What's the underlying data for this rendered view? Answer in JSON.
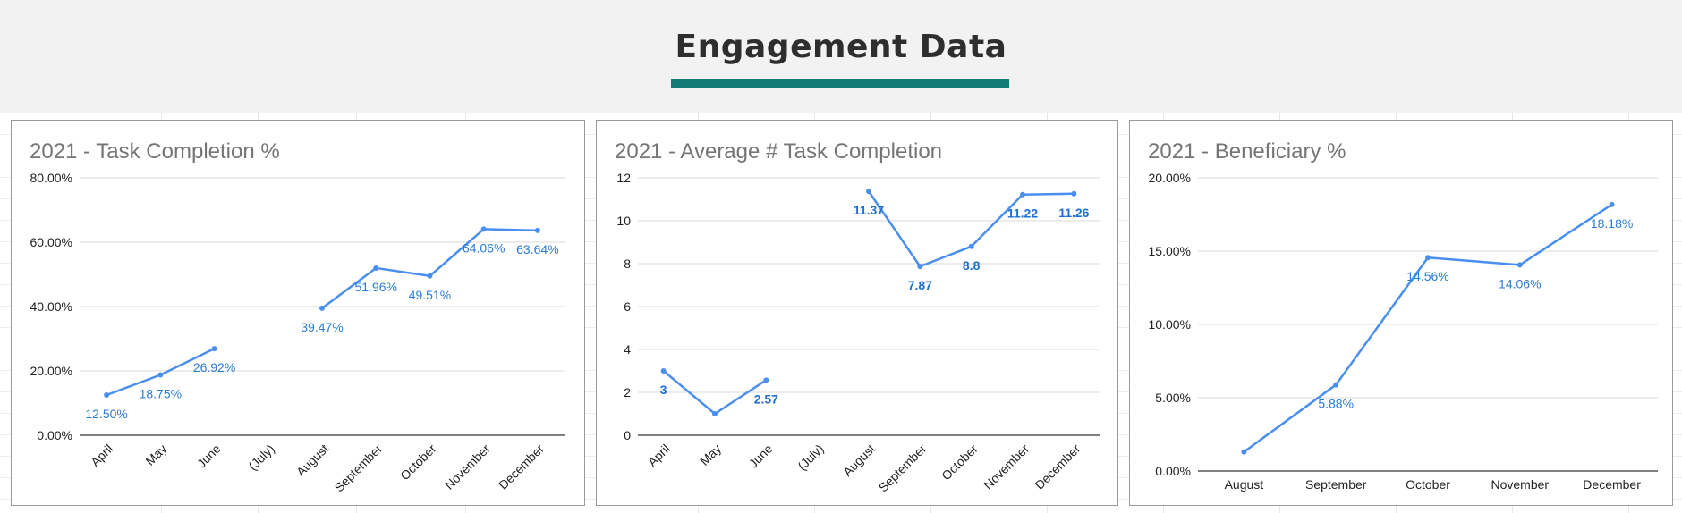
{
  "page": {
    "title": "Engagement Data",
    "accent_color": "#127a74"
  },
  "series_color": "#4a8ff0",
  "chart_data": [
    {
      "type": "line",
      "title": "2021 - Task Completion %",
      "categories": [
        "April",
        "May",
        "June",
        "(July)",
        "August",
        "September",
        "October",
        "November",
        "December"
      ],
      "values": [
        12.5,
        18.75,
        26.92,
        null,
        39.47,
        51.96,
        49.51,
        64.06,
        63.64
      ],
      "data_labels": [
        "12.50%",
        "18.75%",
        "26.92%",
        "",
        "39.47%",
        "51.96%",
        "49.51%",
        "64.06%",
        "63.64%"
      ],
      "y_ticks": [
        0,
        20,
        40,
        60,
        80
      ],
      "y_tick_labels": [
        "0.00%",
        "20.00%",
        "40.00%",
        "60.00%",
        "80.00%"
      ],
      "ylim": [
        0,
        80
      ],
      "rotate_x_labels": true,
      "bold_labels": false,
      "grid": true
    },
    {
      "type": "line",
      "title": "2021 - Average # Task Completion",
      "categories": [
        "April",
        "May",
        "June",
        "(July)",
        "August",
        "September",
        "October",
        "November",
        "December"
      ],
      "values": [
        3,
        1,
        2.57,
        null,
        11.37,
        7.87,
        8.8,
        11.22,
        11.26
      ],
      "data_labels": [
        "3",
        "",
        "2.57",
        "",
        "11.37",
        "7.87",
        "8.8",
        "11.22",
        "11.26"
      ],
      "y_ticks": [
        0,
        2,
        4,
        6,
        8,
        10,
        12
      ],
      "y_tick_labels": [
        "0",
        "2",
        "4",
        "6",
        "8",
        "10",
        "12"
      ],
      "ylim": [
        0,
        12
      ],
      "rotate_x_labels": true,
      "bold_labels": true,
      "grid": true
    },
    {
      "type": "line",
      "title": "2021 - Beneficiary %",
      "categories": [
        "August",
        "September",
        "October",
        "November",
        "December"
      ],
      "values": [
        1.3,
        5.88,
        14.56,
        14.06,
        18.18
      ],
      "data_labels": [
        "",
        "5.88%",
        "14.56%",
        "14.06%",
        "18.18%"
      ],
      "y_ticks": [
        0,
        5,
        10,
        15,
        20
      ],
      "y_tick_labels": [
        "0.00%",
        "5.00%",
        "10.00%",
        "15.00%",
        "20.00%"
      ],
      "ylim": [
        0,
        20
      ],
      "rotate_x_labels": false,
      "bold_labels": false,
      "grid": true
    }
  ]
}
